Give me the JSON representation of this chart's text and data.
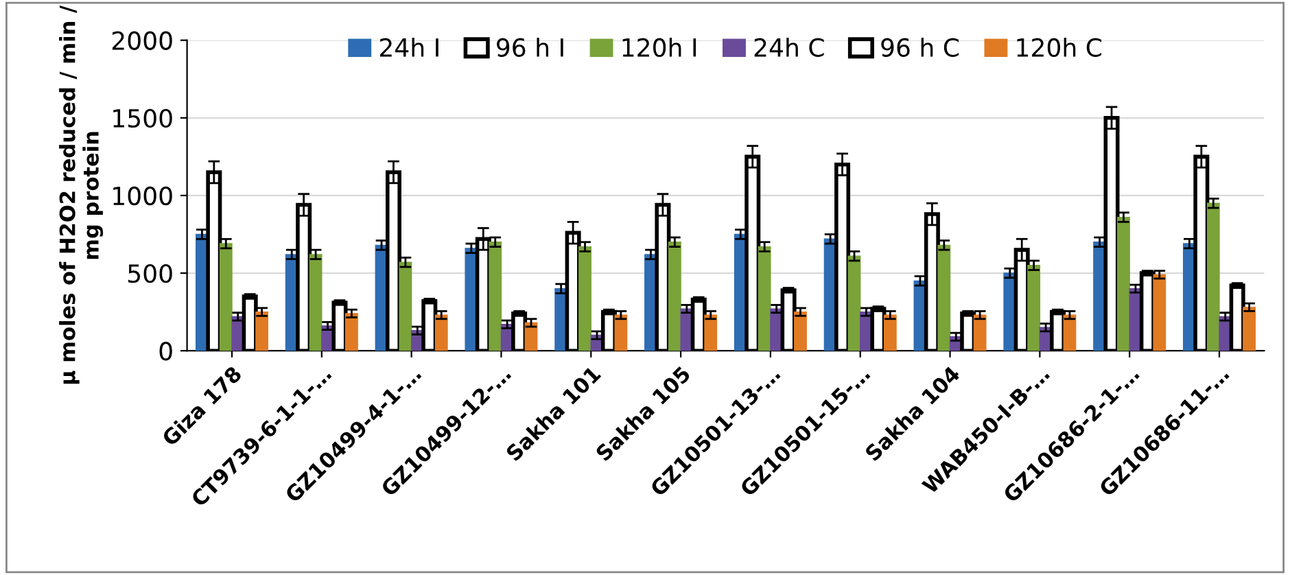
{
  "chart_data": {
    "type": "bar",
    "ylabel": "µ moles of H2O2 reduced / min / mg protein",
    "categories": [
      "Giza 178",
      "CT9739-6-1-1-…",
      "GZ10499-4-1-…",
      "GZ10499-12-…",
      "Sakha 101",
      "Sakha 105",
      "GZ10501-13-…",
      "GZ10501-15-…",
      "Sakha 104",
      "WAB450-I-B-…",
      "GZ10686-2-1-…",
      "GZ10686-11-…"
    ],
    "series": [
      {
        "name": "24h I",
        "color": "#2e6db4",
        "values": [
          750,
          620,
          680,
          660,
          400,
          620,
          750,
          720,
          450,
          500,
          700,
          690
        ],
        "errors": [
          30,
          30,
          30,
          30,
          30,
          30,
          30,
          30,
          30,
          30,
          30,
          30
        ]
      },
      {
        "name": "96 h I",
        "color": "#ffffff",
        "values": [
          1150,
          940,
          1150,
          720,
          760,
          940,
          1250,
          1200,
          880,
          650,
          1500,
          1250
        ],
        "errors": [
          70,
          70,
          70,
          70,
          70,
          70,
          70,
          70,
          70,
          70,
          70,
          70
        ]
      },
      {
        "name": "120h I",
        "color": "#7aa33a",
        "values": [
          690,
          620,
          570,
          700,
          670,
          700,
          670,
          610,
          680,
          550,
          860,
          950
        ],
        "errors": [
          30,
          30,
          30,
          30,
          30,
          30,
          30,
          30,
          30,
          30,
          30,
          30
        ]
      },
      {
        "name": "24h C",
        "color": "#6a4b9a",
        "values": [
          220,
          160,
          130,
          170,
          100,
          270,
          270,
          250,
          90,
          150,
          400,
          220
        ],
        "errors": [
          25,
          25,
          25,
          25,
          25,
          25,
          25,
          25,
          25,
          25,
          25,
          25
        ]
      },
      {
        "name": "96 h C",
        "color": "#ffffff",
        "values": [
          350,
          310,
          320,
          240,
          250,
          330,
          390,
          270,
          240,
          250,
          500,
          420
        ],
        "errors": [
          15,
          15,
          15,
          15,
          15,
          15,
          15,
          15,
          15,
          15,
          15,
          15
        ]
      },
      {
        "name": "120h C",
        "color": "#e07b24",
        "values": [
          250,
          240,
          230,
          180,
          230,
          230,
          250,
          230,
          230,
          230,
          490,
          280
        ],
        "errors": [
          25,
          25,
          25,
          25,
          25,
          25,
          25,
          25,
          25,
          25,
          25,
          25
        ]
      }
    ],
    "ylim": [
      0,
      2000
    ],
    "yticks": [
      0,
      500,
      1000,
      1500,
      2000
    ],
    "grid": "y",
    "legend": "top"
  }
}
